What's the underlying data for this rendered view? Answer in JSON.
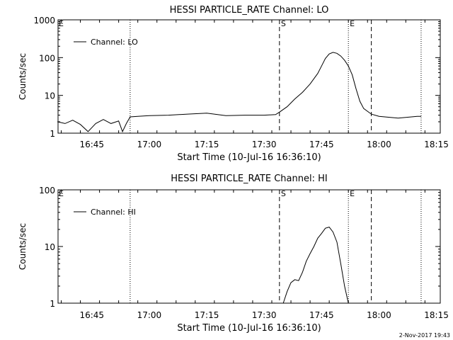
{
  "footer_timestamp": "2-Nov-2017 19:43",
  "chart_data": [
    {
      "type": "line",
      "title": "HESSI PARTICLE_RATE Channel: LO",
      "xlabel": "Start Time (10-Jul-16 16:36:10)",
      "ylabel": "Counts/sec",
      "yscale": "log",
      "ylim": [
        1,
        1000
      ],
      "yticks": [
        1,
        10,
        100,
        1000
      ],
      "ytick_labels": [
        "1",
        "10",
        "100",
        "1000"
      ],
      "xlim": [
        "16:36:10",
        "18:16:00"
      ],
      "xticks": [
        "16:45",
        "17:00",
        "17:15",
        "17:30",
        "17:45",
        "18:00",
        "18:15"
      ],
      "legend": {
        "position": "top-left",
        "entries": [
          "Channel: LO"
        ]
      },
      "markers": [
        {
          "label": "",
          "time": "16:55:00",
          "style": "dotted"
        },
        {
          "label": "S",
          "time": "17:34:00",
          "style": "dashed"
        },
        {
          "label": "E",
          "time": "17:52:00",
          "style": "dotted"
        },
        {
          "label": "",
          "time": "17:58:00",
          "style": "dashed"
        },
        {
          "label": "",
          "time": "18:11:00",
          "style": "dotted"
        }
      ],
      "edge_labels": [
        "E"
      ],
      "series": [
        {
          "name": "Channel: LO",
          "x": [
            "16:36",
            "16:38",
            "16:40",
            "16:42",
            "16:44",
            "16:46",
            "16:48",
            "16:50",
            "16:52",
            "16:53",
            "16:54",
            "16:55",
            "16:57",
            "17:00",
            "17:05",
            "17:10",
            "17:15",
            "17:20",
            "17:25",
            "17:30",
            "17:33",
            "17:34",
            "17:36",
            "17:38",
            "17:40",
            "17:42",
            "17:44",
            "17:45",
            "17:46",
            "17:47",
            "17:48",
            "17:49",
            "17:50",
            "17:51",
            "17:52",
            "17:53",
            "17:54",
            "17:55",
            "17:56",
            "17:58",
            "18:00",
            "18:05",
            "18:10",
            "18:11"
          ],
          "y": [
            2,
            1.8,
            2.2,
            1.7,
            1.1,
            1.8,
            2.3,
            1.8,
            2.1,
            1.1,
            1.8,
            2.7,
            2.8,
            2.9,
            3,
            3.2,
            3.4,
            2.9,
            3,
            3,
            3.1,
            3.6,
            5,
            8,
            12,
            20,
            38,
            60,
            95,
            125,
            138,
            130,
            110,
            85,
            60,
            35,
            15,
            7,
            4.5,
            3.2,
            2.8,
            2.5,
            2.8,
            2.8
          ]
        }
      ]
    },
    {
      "type": "line",
      "title": "HESSI PARTICLE_RATE Channel: HI",
      "xlabel": "Start Time (10-Jul-16 16:36:10)",
      "ylabel": "Counts/sec",
      "yscale": "log",
      "ylim": [
        1,
        100
      ],
      "yticks": [
        1,
        10,
        100
      ],
      "ytick_labels": [
        "1",
        "10",
        "100"
      ],
      "xlim": [
        "16:36:10",
        "18:16:00"
      ],
      "xticks": [
        "16:45",
        "17:00",
        "17:15",
        "17:30",
        "17:45",
        "18:00",
        "18:15"
      ],
      "legend": {
        "position": "top-left",
        "entries": [
          "Channel: HI"
        ]
      },
      "markers": [
        {
          "label": "",
          "time": "16:55:00",
          "style": "dotted"
        },
        {
          "label": "S",
          "time": "17:34:00",
          "style": "dashed"
        },
        {
          "label": "E",
          "time": "17:52:00",
          "style": "dotted"
        },
        {
          "label": "",
          "time": "17:58:00",
          "style": "dashed"
        },
        {
          "label": "",
          "time": "18:11:00",
          "style": "dotted"
        }
      ],
      "edge_labels": [
        "E"
      ],
      "series": [
        {
          "name": "Channel: HI",
          "x": [
            "17:35",
            "17:36",
            "17:37",
            "17:38",
            "17:39",
            "17:40",
            "17:41",
            "17:42",
            "17:43",
            "17:44",
            "17:45",
            "17:46",
            "17:47",
            "17:48",
            "17:49",
            "17:50",
            "17:51",
            "17:52"
          ],
          "y": [
            1,
            1.6,
            2.3,
            2.6,
            2.5,
            3.5,
            5.5,
            7.5,
            10,
            14,
            17,
            21,
            22,
            18,
            12,
            5,
            2,
            1
          ]
        }
      ]
    }
  ]
}
